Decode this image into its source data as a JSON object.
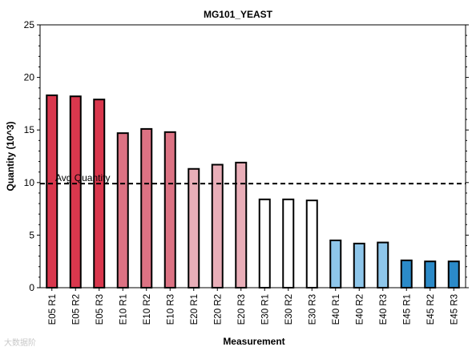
{
  "chart_data": {
    "type": "bar",
    "title": "MG101_YEAST",
    "xlabel": "Measurement",
    "ylabel": "Quantity (10^3)",
    "ylim": [
      0,
      25
    ],
    "yticks": [
      0,
      5,
      10,
      15,
      20,
      25
    ],
    "grid": false,
    "categories": [
      "E05 R1",
      "E05 R2",
      "E05 R3",
      "E10 R1",
      "E10 R2",
      "E10 R3",
      "E20 R1",
      "E20 R2",
      "E20 R3",
      "E30 R1",
      "E30 R2",
      "E30 R3",
      "E40 R1",
      "E40 R2",
      "E40 R3",
      "E45 R1",
      "E45 R2",
      "E45 R3"
    ],
    "values": [
      18.3,
      18.2,
      17.9,
      14.7,
      15.1,
      14.8,
      11.3,
      11.7,
      11.9,
      8.4,
      8.4,
      8.3,
      4.5,
      4.2,
      4.3,
      2.6,
      2.5,
      2.5
    ],
    "colors": [
      "#d9374d",
      "#d9374d",
      "#d9374d",
      "#dc7283",
      "#dc7283",
      "#dc7283",
      "#e9aeb8",
      "#e9aeb8",
      "#e9aeb8",
      "#ffffff",
      "#ffffff",
      "#ffffff",
      "#8ec6ea",
      "#8ec6ea",
      "#8ec6ea",
      "#2b8ac8",
      "#2b8ac8",
      "#2b8ac8"
    ],
    "reference_line": {
      "label": "Avg Quantity",
      "value": 9.9
    }
  },
  "watermark": "大数据阶"
}
